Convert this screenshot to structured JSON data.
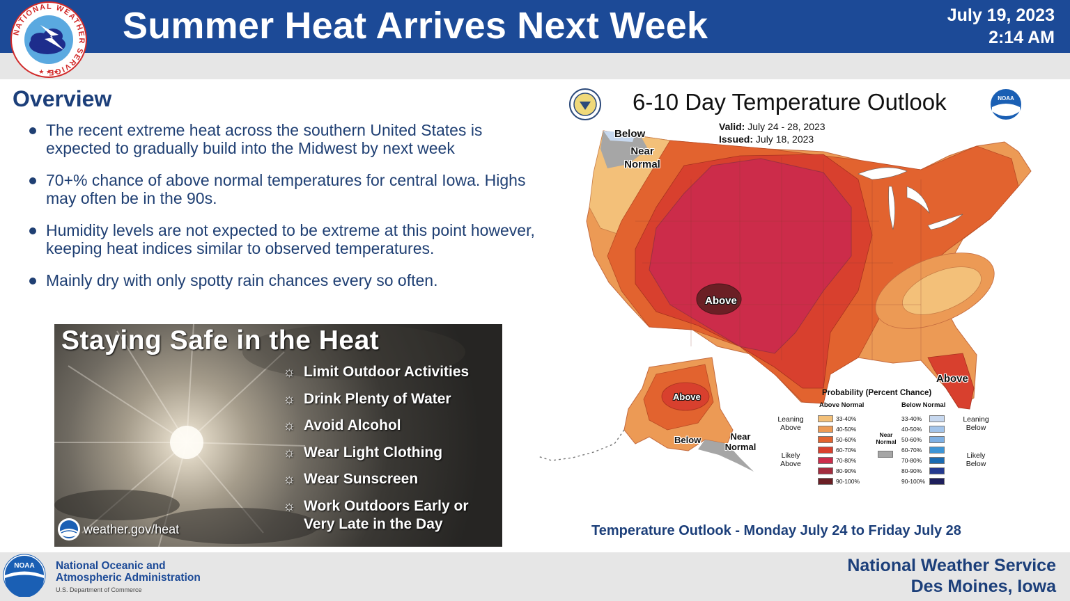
{
  "header": {
    "title": "Summer Heat Arrives Next Week",
    "date": "July 19, 2023",
    "time": "2:14 AM",
    "logo_ring_text": "NATIONAL WEATHER SERVICE"
  },
  "overview": {
    "heading": "Overview",
    "bullets": [
      "The recent extreme heat across the southern United States is expected to gradually build into the Midwest by next week",
      "70+% chance of above normal temperatures for central Iowa. Highs may often be in the 90s.",
      "Humidity levels are not expected to be extreme at this point however, keeping heat indices similar to observed temperatures.",
      "Mainly dry with only spotty rain chances every so often."
    ]
  },
  "heat_safety": {
    "title": "Staying Safe in the Heat",
    "tips": [
      "Limit Outdoor Activities",
      "Drink Plenty of Water",
      "Avoid Alcohol",
      "Wear Light Clothing",
      "Wear Sunscreen",
      "Work Outdoors Early or Very Late in the Day"
    ],
    "bullet_glyph": "☼",
    "url": "weather.gov/heat"
  },
  "outlook": {
    "title": "6-10 Day Temperature Outlook",
    "valid_label": "Valid:",
    "valid_value": "July 24 - 28, 2023",
    "issued_label": "Issued:",
    "issued_value": "July 18, 2023",
    "labels": {
      "below_nw": "Below",
      "near_normal_nw": "Near Normal",
      "above_center": "Above",
      "above_alaska": "Above",
      "above_florida": "Above",
      "below_alaska": "Below",
      "near_normal_ak": "Near Normal"
    },
    "noaa_badge": "NOAA",
    "legend": {
      "title": "Probability (Percent Chance)",
      "above_head": "Above Normal",
      "below_head": "Below Normal",
      "near_head": "Near Normal",
      "leaning_above": "Leaning Above",
      "likely_above": "Likely Above",
      "leaning_below": "Leaning Below",
      "likely_below": "Likely Below",
      "above_bins": [
        {
          "label": "33-40%",
          "color": "#f3c079"
        },
        {
          "label": "40-50%",
          "color": "#ec9a55"
        },
        {
          "label": "50-60%",
          "color": "#e2632f"
        },
        {
          "label": "60-70%",
          "color": "#d8402e"
        },
        {
          "label": "70-80%",
          "color": "#cc2c4a"
        },
        {
          "label": "80-90%",
          "color": "#a32c3e"
        },
        {
          "label": "90-100%",
          "color": "#6b1f25"
        }
      ],
      "below_bins": [
        {
          "label": "33-40%",
          "color": "#c7d8ef"
        },
        {
          "label": "40-50%",
          "color": "#a3c4ea"
        },
        {
          "label": "50-60%",
          "color": "#7fb0e3"
        },
        {
          "label": "60-70%",
          "color": "#3e95d6"
        },
        {
          "label": "70-80%",
          "color": "#1b6bb2"
        },
        {
          "label": "80-90%",
          "color": "#253a8f"
        },
        {
          "label": "90-100%",
          "color": "#1e1f5c"
        }
      ],
      "near_color": "#a6a6a6"
    },
    "caption": "Temperature Outlook - Monday July 24 to Friday July 28"
  },
  "footer": {
    "noaa_badge": "NOAA",
    "noaa_line1": "National Oceanic and",
    "noaa_line2": "Atmospheric Administration",
    "noaa_dept": "U.S. Department of Commerce",
    "nws_line1": "National Weather Service",
    "nws_line2": "Des Moines, Iowa"
  },
  "colors": {
    "header_blue": "#1c4a97",
    "text_navy": "#1c3f7a",
    "band_gray": "#e6e6e6"
  }
}
